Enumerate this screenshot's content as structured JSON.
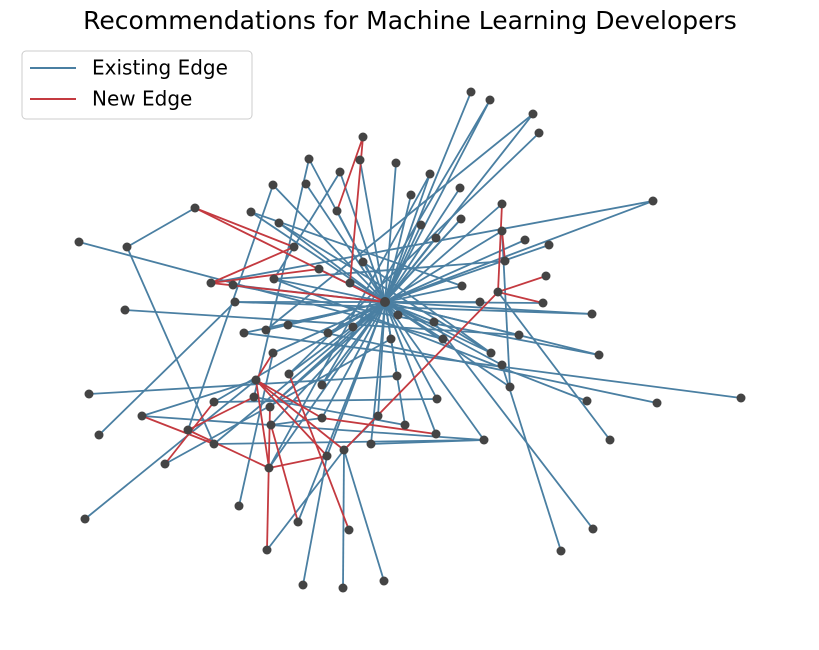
{
  "title": "Recommendations for Machine Learning Developers",
  "legend": [
    {
      "name": "Existing Edge",
      "color": "#4a7fa2"
    },
    {
      "name": "New Edge",
      "color": "#c43a40"
    }
  ]
}
